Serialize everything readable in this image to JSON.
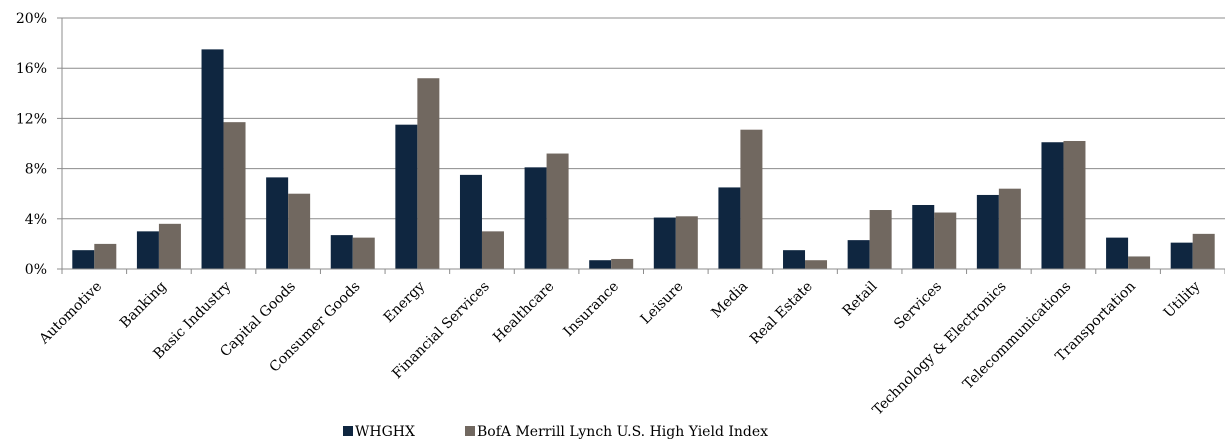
{
  "chart_data": {
    "type": "bar",
    "categories": [
      "Automotive",
      "Banking",
      "Basic Industry",
      "Capital Goods",
      "Consumer Goods",
      "Energy",
      "Financial Services",
      "Healthcare",
      "Insurance",
      "Leisure",
      "Media",
      "Real Estate",
      "Retail",
      "Services",
      "Technology & Electronics",
      "Telecommunications",
      "Transportation",
      "Utility"
    ],
    "series": [
      {
        "name": "WHGHX",
        "color": "#0f2640",
        "values": [
          1.5,
          3.0,
          17.5,
          7.3,
          2.7,
          11.5,
          7.5,
          8.1,
          0.7,
          4.1,
          6.5,
          1.5,
          2.3,
          5.1,
          5.9,
          10.1,
          2.5,
          2.1
        ]
      },
      {
        "name": "BofA Merrill Lynch U.S. High Yield Index",
        "color": "#716860",
        "values": [
          2.0,
          3.6,
          11.7,
          6.0,
          2.5,
          15.2,
          3.0,
          9.2,
          0.8,
          4.2,
          11.1,
          0.7,
          4.7,
          4.5,
          6.4,
          10.2,
          1.0,
          2.8
        ]
      }
    ],
    "yticks": [
      "0%",
      "4%",
      "8%",
      "12%",
      "16%",
      "20%"
    ],
    "ylim": [
      0,
      20
    ],
    "grid": true,
    "legend": "bottom",
    "title": "",
    "xlabel": "",
    "ylabel": ""
  }
}
